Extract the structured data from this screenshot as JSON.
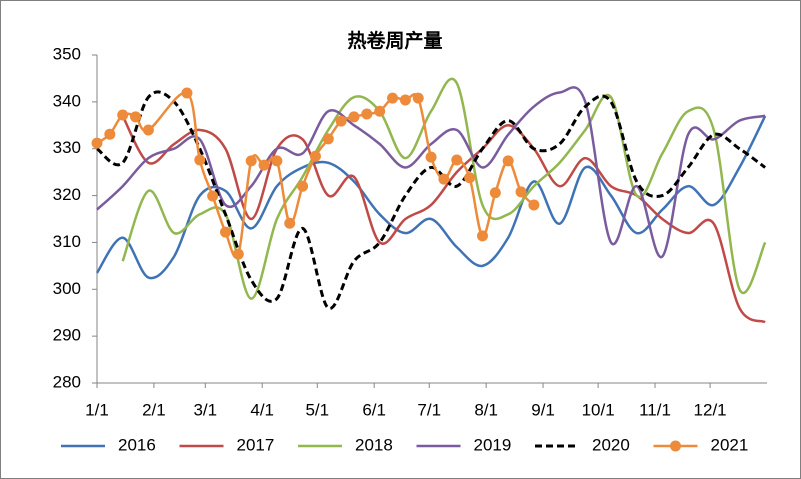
{
  "chart_data": {
    "type": "line",
    "title": "热卷周产量",
    "xlim": [
      0,
      365
    ],
    "xticks": [
      {
        "value": 0,
        "label": "1/1"
      },
      {
        "value": 31,
        "label": "2/1"
      },
      {
        "value": 59,
        "label": "3/1"
      },
      {
        "value": 90,
        "label": "4/1"
      },
      {
        "value": 120,
        "label": "5/1"
      },
      {
        "value": 151,
        "label": "6/1"
      },
      {
        "value": 181,
        "label": "7/1"
      },
      {
        "value": 212,
        "label": "8/1"
      },
      {
        "value": 243,
        "label": "9/1"
      },
      {
        "value": 273,
        "label": "10/1"
      },
      {
        "value": 304,
        "label": "11/1"
      },
      {
        "value": 334,
        "label": "12/1"
      }
    ],
    "ylim": [
      280,
      350
    ],
    "yticks": [
      280,
      290,
      300,
      310,
      320,
      330,
      340,
      350
    ],
    "grid": false,
    "legend": "bottom",
    "series": [
      {
        "name": "2016",
        "color": "#3f73b5",
        "dashed": false,
        "marker": false,
        "x": [
          0,
          14,
          28,
          42,
          56,
          70,
          84,
          98,
          112,
          126,
          140,
          154,
          168,
          182,
          196,
          210,
          224,
          238,
          252,
          266,
          280,
          294,
          308,
          322,
          336,
          350,
          364
        ],
        "values": [
          303.5,
          311,
          302.5,
          307,
          320,
          321,
          313,
          322,
          326,
          327,
          323,
          316,
          312,
          315,
          309,
          305,
          311,
          323,
          314,
          326,
          320,
          312,
          317,
          322,
          318,
          326,
          337
        ]
      },
      {
        "name": "2017",
        "color": "#bf4a47",
        "dashed": false,
        "marker": false,
        "x": [
          0,
          14,
          28,
          42,
          56,
          70,
          84,
          98,
          112,
          126,
          140,
          154,
          168,
          182,
          196,
          210,
          224,
          238,
          252,
          266,
          280,
          294,
          308,
          322,
          336,
          350,
          364
        ],
        "values": [
          null,
          337,
          327,
          331,
          334,
          330,
          315,
          330,
          332,
          320,
          324,
          310,
          315,
          318,
          325,
          330,
          335,
          330,
          322,
          328,
          322,
          320,
          315,
          312,
          314,
          296,
          293
        ]
      },
      {
        "name": "2018",
        "color": "#93b74f",
        "dashed": false,
        "marker": false,
        "x": [
          0,
          14,
          28,
          42,
          56,
          70,
          84,
          98,
          112,
          126,
          140,
          154,
          168,
          182,
          196,
          210,
          224,
          238,
          252,
          266,
          280,
          294,
          308,
          322,
          336,
          350,
          364
        ],
        "values": [
          null,
          306,
          321,
          312,
          316,
          316,
          298,
          315,
          324,
          334,
          341,
          338,
          328,
          338,
          344,
          318,
          316,
          322,
          327,
          334,
          341,
          320,
          329,
          338,
          334,
          300,
          310
        ]
      },
      {
        "name": "2019",
        "color": "#7a5c9e",
        "dashed": false,
        "marker": false,
        "x": [
          0,
          14,
          28,
          42,
          56,
          70,
          84,
          98,
          112,
          126,
          140,
          154,
          168,
          182,
          196,
          210,
          224,
          238,
          252,
          266,
          280,
          294,
          308,
          322,
          336,
          350,
          364
        ],
        "values": [
          317,
          322,
          328,
          330,
          332,
          318,
          322,
          330,
          329,
          338,
          335,
          331,
          326,
          331,
          334,
          326,
          333,
          339,
          342,
          340,
          310,
          322,
          307,
          333,
          332,
          336,
          337
        ]
      },
      {
        "name": "2020",
        "color": "#000000",
        "dashed": true,
        "marker": false,
        "x": [
          0,
          14,
          28,
          42,
          56,
          70,
          84,
          98,
          112,
          126,
          140,
          154,
          168,
          182,
          196,
          210,
          224,
          238,
          252,
          266,
          280,
          294,
          308,
          322,
          336,
          350,
          364
        ],
        "values": [
          330,
          327,
          341,
          340,
          330,
          316,
          302,
          298,
          313,
          296,
          306,
          310,
          320,
          326,
          322,
          330,
          336,
          330,
          331,
          339,
          340,
          323,
          320,
          326,
          333,
          330,
          326
        ]
      },
      {
        "name": "2021",
        "color": "#ed8b3b",
        "dashed": false,
        "marker": true,
        "x": [
          0,
          7,
          14,
          21,
          28,
          49,
          56,
          63,
          70,
          77,
          84,
          91,
          98,
          105,
          112,
          119,
          126,
          133,
          140,
          147,
          154,
          161,
          168,
          175,
          182,
          189,
          196,
          203,
          210,
          217,
          224,
          231,
          238
        ],
        "values": [
          331.2,
          333.1,
          337.2,
          336.8,
          334,
          341.9,
          327.6,
          319.9,
          312.2,
          307.5,
          327.4,
          326.5,
          327.4,
          314.1,
          322,
          328.4,
          332.1,
          335.9,
          336.8,
          337.4,
          338,
          340.8,
          340.4,
          340.8,
          328.2,
          323.5,
          327.6,
          323.8,
          311.4,
          320.6,
          327.4,
          320.8,
          318
        ]
      }
    ]
  }
}
